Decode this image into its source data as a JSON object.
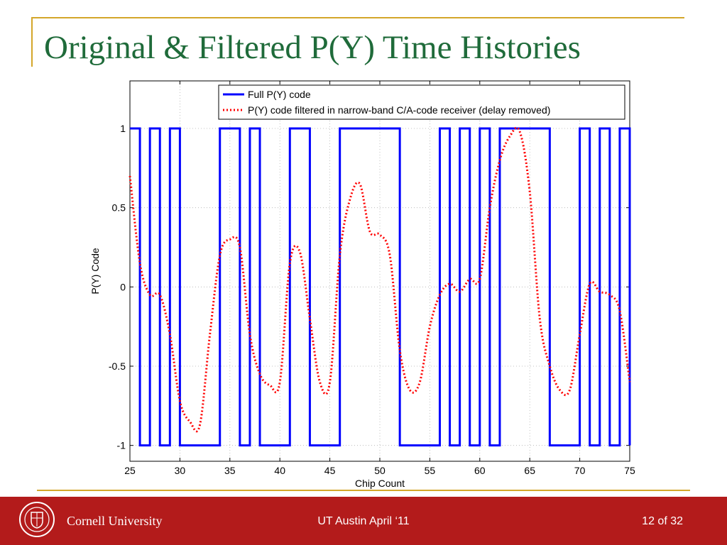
{
  "slide": {
    "title": "Original & Filtered P(Y) Time Histories",
    "footer_org": "Cornell University",
    "footer_center": "UT Austin April ‘11",
    "footer_page": "12 of 32"
  },
  "colors": {
    "title": "#1f6b3a",
    "accent_line": "#d4a62a",
    "footer_bg": "#b31b1b",
    "series_full": "#0000ff",
    "series_filtered": "#ff0000"
  },
  "chart_data": {
    "type": "line",
    "title": "",
    "xlabel": "Chip Count",
    "ylabel": "P(Y) Code",
    "xlim": [
      25,
      75
    ],
    "ylim": [
      -1.1,
      1.3
    ],
    "xticks": [
      "25",
      "30",
      "35",
      "40",
      "45",
      "50",
      "55",
      "60",
      "65",
      "70",
      "75"
    ],
    "yticks": [
      "1",
      "0.5",
      "0",
      "-0.5",
      "-1"
    ],
    "grid": true,
    "legend_position": "top-right",
    "series": [
      {
        "name": "Full P(Y) code",
        "style": "solid-step",
        "x": [
          25,
          26,
          27,
          28,
          29,
          30,
          31,
          32,
          33,
          34,
          35,
          36,
          37,
          38,
          39,
          40,
          41,
          42,
          43,
          44,
          45,
          46,
          47,
          48,
          49,
          50,
          51,
          52,
          53,
          54,
          55,
          56,
          57,
          58,
          59,
          60,
          61,
          62,
          63,
          64,
          65,
          66,
          67,
          68,
          69,
          70,
          71,
          72,
          73,
          74,
          75
        ],
        "y": [
          1,
          -1,
          1,
          -1,
          1,
          -1,
          -1,
          -1,
          -1,
          1,
          1,
          -1,
          1,
          -1,
          -1,
          -1,
          1,
          1,
          -1,
          -1,
          -1,
          1,
          1,
          1,
          1,
          1,
          1,
          -1,
          -1,
          -1,
          -1,
          1,
          -1,
          1,
          -1,
          1,
          -1,
          1,
          1,
          1,
          1,
          1,
          -1,
          -1,
          -1,
          1,
          -1,
          1,
          -1,
          1,
          -1
        ]
      },
      {
        "name": "P(Y) code filtered in narrow-band C/A-code receiver (delay removed)",
        "style": "dotted",
        "x": [
          25,
          26,
          27,
          28,
          29,
          30,
          31,
          32,
          33,
          34,
          35,
          36,
          37,
          38,
          39,
          40,
          41,
          42,
          43,
          44,
          45,
          46,
          47,
          48,
          49,
          50,
          51,
          52,
          53,
          54,
          55,
          56,
          57,
          58,
          59,
          60,
          61,
          62,
          63,
          64,
          65,
          66,
          67,
          68,
          69,
          70,
          71,
          72,
          73,
          74,
          75
        ],
        "y": [
          0.7,
          0.15,
          -0.05,
          -0.05,
          -0.3,
          -0.72,
          -0.85,
          -0.87,
          -0.3,
          0.2,
          0.3,
          0.25,
          -0.3,
          -0.55,
          -0.62,
          -0.6,
          0.15,
          0.22,
          -0.2,
          -0.6,
          -0.6,
          0.2,
          0.55,
          0.65,
          0.35,
          0.33,
          0.2,
          -0.4,
          -0.65,
          -0.6,
          -0.25,
          -0.05,
          0.02,
          -0.03,
          0.05,
          0.05,
          0.5,
          0.8,
          0.95,
          0.98,
          0.6,
          -0.2,
          -0.5,
          -0.65,
          -0.65,
          -0.3,
          0.02,
          -0.03,
          -0.05,
          -0.15,
          -0.6
        ]
      }
    ]
  }
}
